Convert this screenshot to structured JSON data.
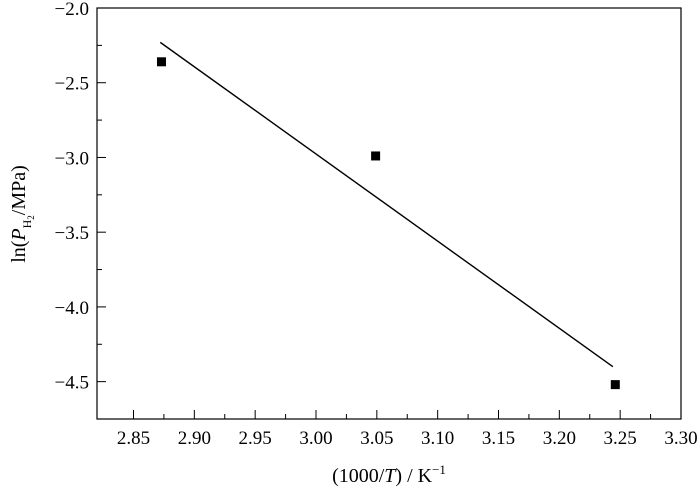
{
  "chart_data": {
    "type": "scatter",
    "xlabel": {
      "prefix": "(1000/",
      "var": "T",
      "mid": ") / K",
      "sup": "−1"
    },
    "ylabel": {
      "prefix": "ln(",
      "var": "P",
      "sub": "H",
      "subsub": "2",
      "suffix": "/MPa)"
    },
    "xlim": [
      2.82,
      3.3
    ],
    "ylim": [
      -4.75,
      -2.0
    ],
    "x_ticks": [
      2.85,
      2.9,
      2.95,
      3.0,
      3.05,
      3.1,
      3.15,
      3.2,
      3.25,
      3.3
    ],
    "x_tick_labels": [
      "2.85",
      "2.90",
      "2.95",
      "3.00",
      "3.05",
      "3.10",
      "3.15",
      "3.20",
      "3.25",
      "3.30"
    ],
    "y_ticks": [
      -2.0,
      -2.5,
      -3.0,
      -3.5,
      -4.0,
      -4.5
    ],
    "y_tick_labels": [
      "−2.0",
      "−2.5",
      "−3.0",
      "−3.5",
      "−4.0",
      "−4.5"
    ],
    "grid": false,
    "series": [
      {
        "type": "scatter",
        "marker": "square",
        "x": [
          2.873,
          3.049,
          3.246
        ],
        "y": [
          -2.36,
          -2.99,
          -4.52
        ]
      },
      {
        "type": "line",
        "x": [
          2.872,
          3.244
        ],
        "y": [
          -2.23,
          -4.4
        ]
      }
    ]
  }
}
